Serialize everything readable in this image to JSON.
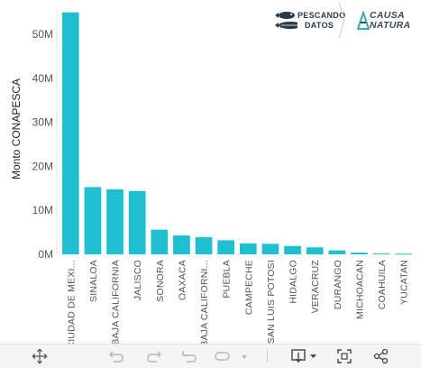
{
  "chart_data": {
    "type": "bar",
    "ylabel": "Monto CONAPESCA",
    "xlabel": "",
    "title": "",
    "ylim": [
      0,
      57
    ],
    "yticks": [
      0,
      10,
      20,
      30,
      40,
      50
    ],
    "ytick_labels": [
      "0M",
      "10M",
      "20M",
      "30M",
      "40M",
      "50M"
    ],
    "categories": [
      "CIUDAD DE MEXI...",
      "SINALOA",
      "BAJA CALIFORNIA",
      "JALISCO",
      "SONORA",
      "OAXACA",
      "BAJA CALIFORNI...",
      "PUEBLA",
      "CAMPECHE",
      "SAN LUIS POTOSI",
      "HIDALGO",
      "VERACRUZ",
      "DURANGO",
      "MICHOACAN",
      "COAHUILA",
      "YUCATAN"
    ],
    "values": [
      55.0,
      15.3,
      14.8,
      14.4,
      5.6,
      4.3,
      3.9,
      3.2,
      2.5,
      2.4,
      1.9,
      1.6,
      0.9,
      0.4,
      0.2,
      0.15
    ],
    "bar_color": "#1fbfcf",
    "grid": false,
    "legend": "none"
  },
  "logos": {
    "pescando_line1": "PESCANDO",
    "pescando_line2": "DATOS",
    "causa_line1": "CAUSA",
    "causa_line2": "NATURA",
    "pescando_color": "#2a3a4a",
    "causa_color": "#3d4a57"
  },
  "toolbar": {
    "icons": [
      "move-icon",
      "undo-icon",
      "redo-icon",
      "revert-icon",
      "pause-icon",
      "download-icon",
      "fullscreen-icon",
      "share-icon"
    ]
  }
}
